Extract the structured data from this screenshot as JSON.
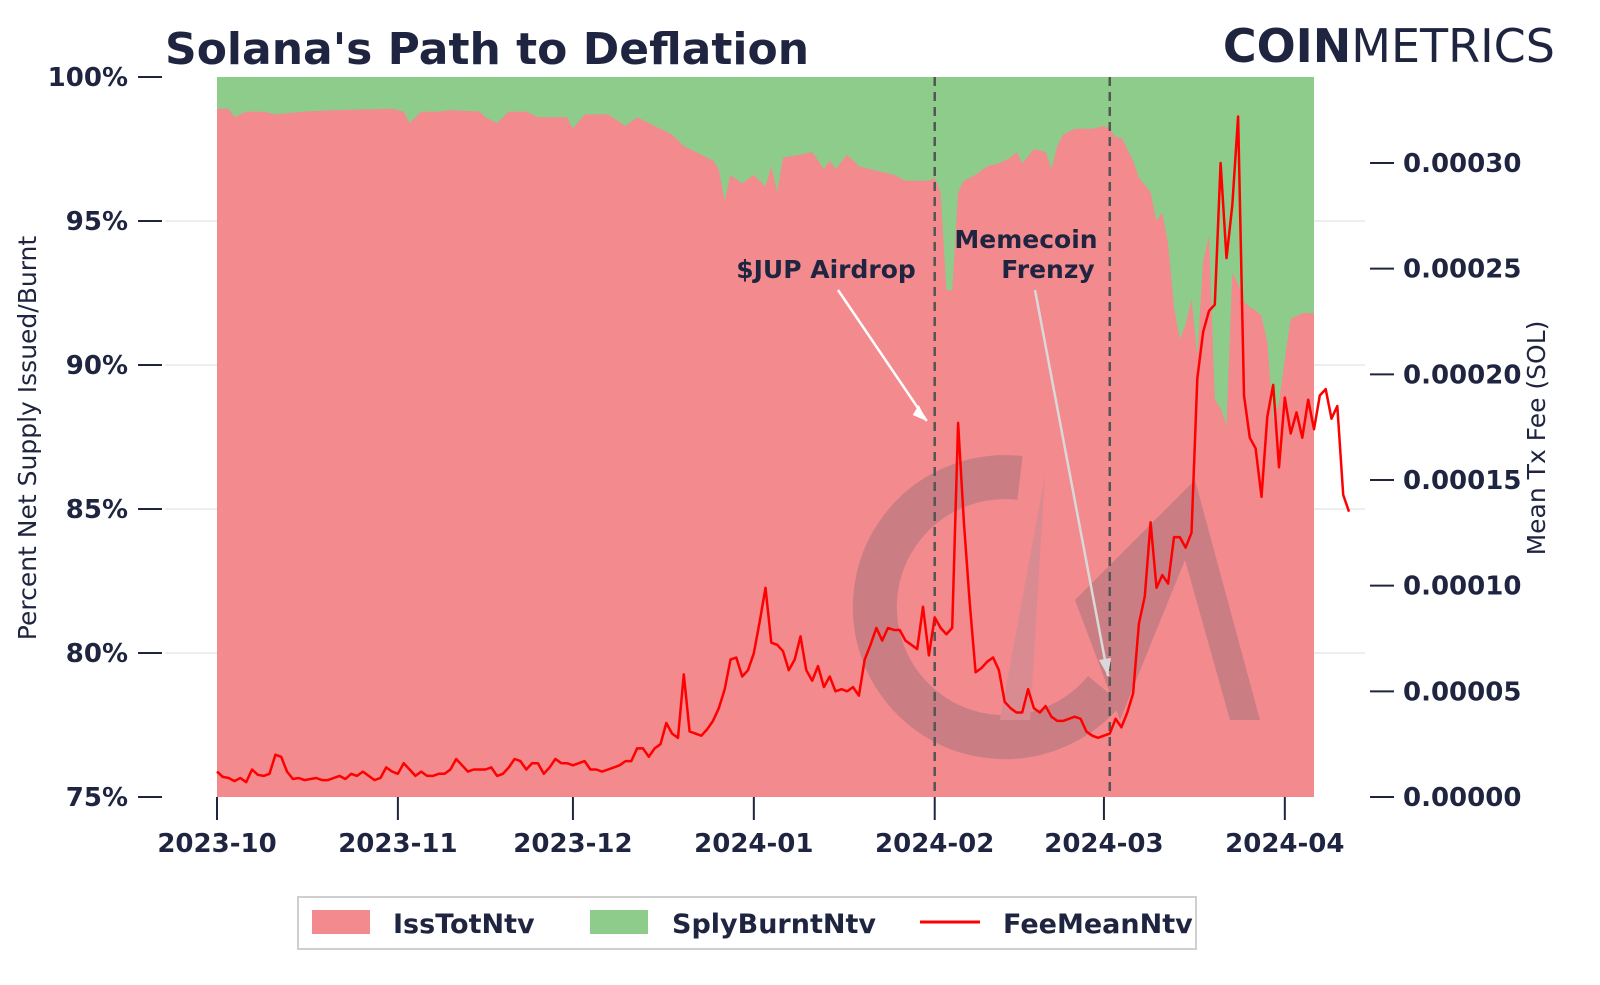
{
  "chart_data": {
    "type": "area",
    "title": "Solana's Path to Deflation",
    "brand": {
      "strong": "COIN",
      "light": "METRICS"
    },
    "ylabel_left": "Percent Net Supply Issued/Burnt",
    "ylabel_right": "Mean Tx Fee (SOL)",
    "x_ticks": [
      "2023-10",
      "2023-11",
      "2023-12",
      "2024-01",
      "2024-02",
      "2024-03",
      "2024-04"
    ],
    "x_range_days": [
      -10,
      197
    ],
    "ylim_left": [
      75,
      100
    ],
    "ylim_right": [
      0,
      0.00034
    ],
    "y_ticks_left": [
      "75%",
      "80%",
      "85%",
      "90%",
      "95%",
      "100%"
    ],
    "y_ticks_right": [
      "0.00000",
      "0.00005",
      "0.00010",
      "0.00015",
      "0.00020",
      "0.00025",
      "0.00030"
    ],
    "legend": [
      "IssTotNtv",
      "SplyBurntNtv",
      "FeeMeanNtv"
    ],
    "colors": {
      "issued": "#f28a8e",
      "burnt": "#8ecc8c",
      "fee": "#ff0000",
      "text": "#1f2540"
    },
    "annotations": [
      {
        "label": "$JUP Airdrop",
        "date_day": 123,
        "value": 0.000177
      },
      {
        "label": "Memecoin Frenzy",
        "lines": [
          "Memecoin",
          "Frenzy"
        ],
        "date_day": 153,
        "value": 6e-05
      }
    ],
    "issued_pct_points": [
      [
        0,
        98.9
      ],
      [
        2,
        98.9
      ],
      [
        3,
        98.6
      ],
      [
        5,
        98.8
      ],
      [
        8,
        98.8
      ],
      [
        10,
        98.7
      ],
      [
        15,
        98.8
      ],
      [
        20,
        98.85
      ],
      [
        30,
        98.9
      ],
      [
        32,
        98.8
      ],
      [
        33,
        98.4
      ],
      [
        35,
        98.8
      ],
      [
        38,
        98.8
      ],
      [
        40,
        98.85
      ],
      [
        45,
        98.8
      ],
      [
        46,
        98.6
      ],
      [
        48,
        98.4
      ],
      [
        50,
        98.8
      ],
      [
        53,
        98.8
      ],
      [
        55,
        98.6
      ],
      [
        60,
        98.6
      ],
      [
        61,
        98.2
      ],
      [
        63,
        98.7
      ],
      [
        67,
        98.7
      ],
      [
        70,
        98.3
      ],
      [
        72,
        98.6
      ],
      [
        75,
        98.3
      ],
      [
        78,
        98.0
      ],
      [
        80,
        97.6
      ],
      [
        83,
        97.3
      ],
      [
        85,
        97.1
      ],
      [
        86,
        96.8
      ],
      [
        87,
        95.7
      ],
      [
        88,
        96.6
      ],
      [
        90,
        96.3
      ],
      [
        92,
        96.6
      ],
      [
        94,
        96.2
      ],
      [
        95,
        96.9
      ],
      [
        96,
        96.0
      ],
      [
        97,
        97.2
      ],
      [
        100,
        97.3
      ],
      [
        102,
        97.4
      ],
      [
        104,
        96.8
      ],
      [
        105,
        97.1
      ],
      [
        106,
        96.8
      ],
      [
        108,
        97.3
      ],
      [
        110,
        96.9
      ],
      [
        112,
        96.8
      ],
      [
        114,
        96.7
      ],
      [
        116,
        96.6
      ],
      [
        118,
        96.4
      ],
      [
        120,
        96.4
      ],
      [
        122,
        96.4
      ],
      [
        123,
        96.5
      ],
      [
        124,
        96.0
      ],
      [
        125,
        92.6
      ],
      [
        126,
        92.6
      ],
      [
        127,
        96.0
      ],
      [
        128,
        96.4
      ],
      [
        130,
        96.6
      ],
      [
        132,
        96.9
      ],
      [
        134,
        97.0
      ],
      [
        136,
        97.2
      ],
      [
        137,
        97.4
      ],
      [
        138,
        97.0
      ],
      [
        140,
        97.5
      ],
      [
        142,
        97.4
      ],
      [
        143,
        96.8
      ],
      [
        144,
        97.6
      ],
      [
        145,
        98.0
      ],
      [
        147,
        98.2
      ],
      [
        150,
        98.2
      ],
      [
        152,
        98.3
      ],
      [
        153,
        98.2
      ],
      [
        154,
        97.9
      ],
      [
        155,
        97.9
      ],
      [
        156,
        97.5
      ],
      [
        157,
        97.1
      ],
      [
        158,
        96.5
      ],
      [
        160,
        96.0
      ],
      [
        161,
        95.0
      ],
      [
        162,
        95.3
      ],
      [
        163,
        94.2
      ],
      [
        164,
        92.0
      ],
      [
        165,
        90.9
      ],
      [
        166,
        91.4
      ],
      [
        167,
        92.3
      ],
      [
        168,
        90.3
      ],
      [
        169,
        93.6
      ],
      [
        170,
        94.5
      ],
      [
        171,
        88.8
      ],
      [
        172,
        88.5
      ],
      [
        173,
        87.9
      ],
      [
        174,
        93.2
      ],
      [
        175,
        92.8
      ],
      [
        176,
        92.2
      ],
      [
        177,
        92.0
      ],
      [
        178,
        91.9
      ],
      [
        179,
        91.7
      ],
      [
        180,
        90.8
      ],
      [
        181,
        88.1
      ],
      [
        182,
        88.7
      ],
      [
        183,
        90.2
      ],
      [
        184,
        91.6
      ],
      [
        186,
        91.8
      ],
      [
        188,
        91.8
      ]
    ],
    "fee_mean_points": [
      [
        0,
        1.2e-05
      ],
      [
        1,
        9.5e-06
      ],
      [
        2,
        9e-06
      ],
      [
        3,
        7.5e-06
      ],
      [
        4,
        9e-06
      ],
      [
        5,
        7e-06
      ],
      [
        6,
        1.3e-05
      ],
      [
        7,
        1.05e-05
      ],
      [
        8,
        1e-05
      ],
      [
        9,
        1.1e-05
      ],
      [
        10,
        2e-05
      ],
      [
        11,
        1.9e-05
      ],
      [
        12,
        1.2e-05
      ],
      [
        13,
        8.5e-06
      ],
      [
        14,
        9e-06
      ],
      [
        15,
        8e-06
      ],
      [
        16,
        8.5e-06
      ],
      [
        17,
        9e-06
      ],
      [
        18,
        8e-06
      ],
      [
        19,
        8e-06
      ],
      [
        20,
        9e-06
      ],
      [
        21,
        1e-05
      ],
      [
        22,
        8.5e-06
      ],
      [
        23,
        1.1e-05
      ],
      [
        24,
        1e-05
      ],
      [
        25,
        1.2e-05
      ],
      [
        26,
        1e-05
      ],
      [
        27,
        8e-06
      ],
      [
        28,
        9e-06
      ],
      [
        29,
        1.4e-05
      ],
      [
        30,
        1.2e-05
      ],
      [
        31,
        1.1e-05
      ],
      [
        32,
        1.6e-05
      ],
      [
        33,
        1.3e-05
      ],
      [
        34,
        1e-05
      ],
      [
        35,
        1.2e-05
      ],
      [
        36,
        1e-05
      ],
      [
        37,
        1e-05
      ],
      [
        38,
        1.1e-05
      ],
      [
        39,
        1.1e-05
      ],
      [
        40,
        1.3e-05
      ],
      [
        41,
        1.8e-05
      ],
      [
        42,
        1.5e-05
      ],
      [
        43,
        1.2e-05
      ],
      [
        44,
        1.3e-05
      ],
      [
        45,
        1.3e-05
      ],
      [
        46,
        1.3e-05
      ],
      [
        47,
        1.4e-05
      ],
      [
        48,
        1e-05
      ],
      [
        49,
        1.1e-05
      ],
      [
        50,
        1.4e-05
      ],
      [
        51,
        1.8e-05
      ],
      [
        52,
        1.7e-05
      ],
      [
        53,
        1.3e-05
      ],
      [
        54,
        1.6e-05
      ],
      [
        55,
        1.6e-05
      ],
      [
        56,
        1.1e-05
      ],
      [
        57,
        1.4e-05
      ],
      [
        58,
        1.8e-05
      ],
      [
        59,
        1.6e-05
      ],
      [
        60,
        1.6e-05
      ],
      [
        61,
        1.5e-05
      ],
      [
        62,
        1.6e-05
      ],
      [
        63,
        1.7e-05
      ],
      [
        64,
        1.3e-05
      ],
      [
        65,
        1.3e-05
      ],
      [
        66,
        1.2e-05
      ],
      [
        67,
        1.3e-05
      ],
      [
        68,
        1.4e-05
      ],
      [
        69,
        1.5e-05
      ],
      [
        70,
        1.7e-05
      ],
      [
        71,
        1.7e-05
      ],
      [
        72,
        2.3e-05
      ],
      [
        73,
        2.3e-05
      ],
      [
        74,
        1.9e-05
      ],
      [
        75,
        2.3e-05
      ],
      [
        76,
        2.5e-05
      ],
      [
        77,
        3.5e-05
      ],
      [
        78,
        3e-05
      ],
      [
        79,
        2.8e-05
      ],
      [
        80,
        5.8e-05
      ],
      [
        81,
        3.1e-05
      ],
      [
        82,
        3e-05
      ],
      [
        83,
        2.9e-05
      ],
      [
        84,
        3.2e-05
      ],
      [
        85,
        3.6e-05
      ],
      [
        86,
        4.2e-05
      ],
      [
        87,
        5.1e-05
      ],
      [
        88,
        6.5e-05
      ],
      [
        89,
        6.6e-05
      ],
      [
        90,
        5.7e-05
      ],
      [
        91,
        6e-05
      ],
      [
        92,
        6.8e-05
      ],
      [
        93,
        8.3e-05
      ],
      [
        94,
        9.9e-05
      ],
      [
        95,
        7.3e-05
      ],
      [
        96,
        7.2e-05
      ],
      [
        97,
        6.9e-05
      ],
      [
        98,
        6e-05
      ],
      [
        99,
        6.5e-05
      ],
      [
        100,
        7.6e-05
      ],
      [
        101,
        6e-05
      ],
      [
        102,
        5.5e-05
      ],
      [
        103,
        6.2e-05
      ],
      [
        104,
        5.2e-05
      ],
      [
        105,
        5.7e-05
      ],
      [
        106,
        5e-05
      ],
      [
        107,
        5.1e-05
      ],
      [
        108,
        5e-05
      ],
      [
        109,
        5.2e-05
      ],
      [
        110,
        4.8e-05
      ],
      [
        111,
        6.5e-05
      ],
      [
        112,
        7.2e-05
      ],
      [
        113,
        8e-05
      ],
      [
        114,
        7.4e-05
      ],
      [
        115,
        8e-05
      ],
      [
        116,
        7.9e-05
      ],
      [
        117,
        7.9e-05
      ],
      [
        118,
        7.4e-05
      ],
      [
        119,
        7.2e-05
      ],
      [
        120,
        7e-05
      ],
      [
        121,
        9e-05
      ],
      [
        122,
        6.7e-05
      ],
      [
        123,
        8.5e-05
      ],
      [
        124,
        8e-05
      ],
      [
        125,
        7.7e-05
      ],
      [
        126,
        8e-05
      ],
      [
        127,
        0.000177
      ],
      [
        128,
        0.00013
      ],
      [
        129,
        9.2e-05
      ],
      [
        130,
        5.9e-05
      ],
      [
        131,
        6.1e-05
      ],
      [
        132,
        6.4e-05
      ],
      [
        133,
        6.6e-05
      ],
      [
        134,
        6e-05
      ],
      [
        135,
        4.5e-05
      ],
      [
        136,
        4.2e-05
      ],
      [
        137,
        4e-05
      ],
      [
        138,
        4e-05
      ],
      [
        139,
        5.1e-05
      ],
      [
        140,
        4.2e-05
      ],
      [
        141,
        4e-05
      ],
      [
        142,
        4.3e-05
      ],
      [
        143,
        3.8e-05
      ],
      [
        144,
        3.6e-05
      ],
      [
        145,
        3.6e-05
      ],
      [
        146,
        3.7e-05
      ],
      [
        147,
        3.8e-05
      ],
      [
        148,
        3.7e-05
      ],
      [
        149,
        3.1e-05
      ],
      [
        150,
        2.9e-05
      ],
      [
        151,
        2.8e-05
      ],
      [
        152,
        2.9e-05
      ],
      [
        153,
        3e-05
      ],
      [
        154,
        3.7e-05
      ],
      [
        155,
        3.3e-05
      ],
      [
        156,
        4e-05
      ],
      [
        157,
        4.9e-05
      ],
      [
        158,
        8.2e-05
      ],
      [
        159,
        9.5e-05
      ],
      [
        160,
        0.00013
      ],
      [
        161,
        9.9e-05
      ],
      [
        162,
        0.000105
      ],
      [
        163,
        0.000101
      ],
      [
        164,
        0.000123
      ],
      [
        165,
        0.000123
      ],
      [
        166,
        0.000118
      ],
      [
        167,
        0.000125
      ],
      [
        168,
        0.000198
      ],
      [
        169,
        0.00022
      ],
      [
        170,
        0.00023
      ],
      [
        171,
        0.000233
      ],
      [
        172,
        0.0003
      ],
      [
        173,
        0.000255
      ],
      [
        174,
        0.00028
      ],
      [
        175,
        0.000322
      ],
      [
        176,
        0.00019
      ],
      [
        177,
        0.00017
      ],
      [
        178,
        0.000165
      ],
      [
        179,
        0.000142
      ],
      [
        180,
        0.00018
      ],
      [
        181,
        0.000195
      ],
      [
        182,
        0.000156
      ],
      [
        183,
        0.000189
      ],
      [
        184,
        0.000172
      ],
      [
        185,
        0.000182
      ],
      [
        186,
        0.00017
      ],
      [
        187,
        0.000188
      ],
      [
        188,
        0.000174
      ],
      [
        189,
        0.00019
      ],
      [
        190,
        0.000193
      ],
      [
        191,
        0.000179
      ],
      [
        192,
        0.000185
      ],
      [
        193,
        0.000143
      ],
      [
        194,
        0.000135
      ]
    ]
  }
}
